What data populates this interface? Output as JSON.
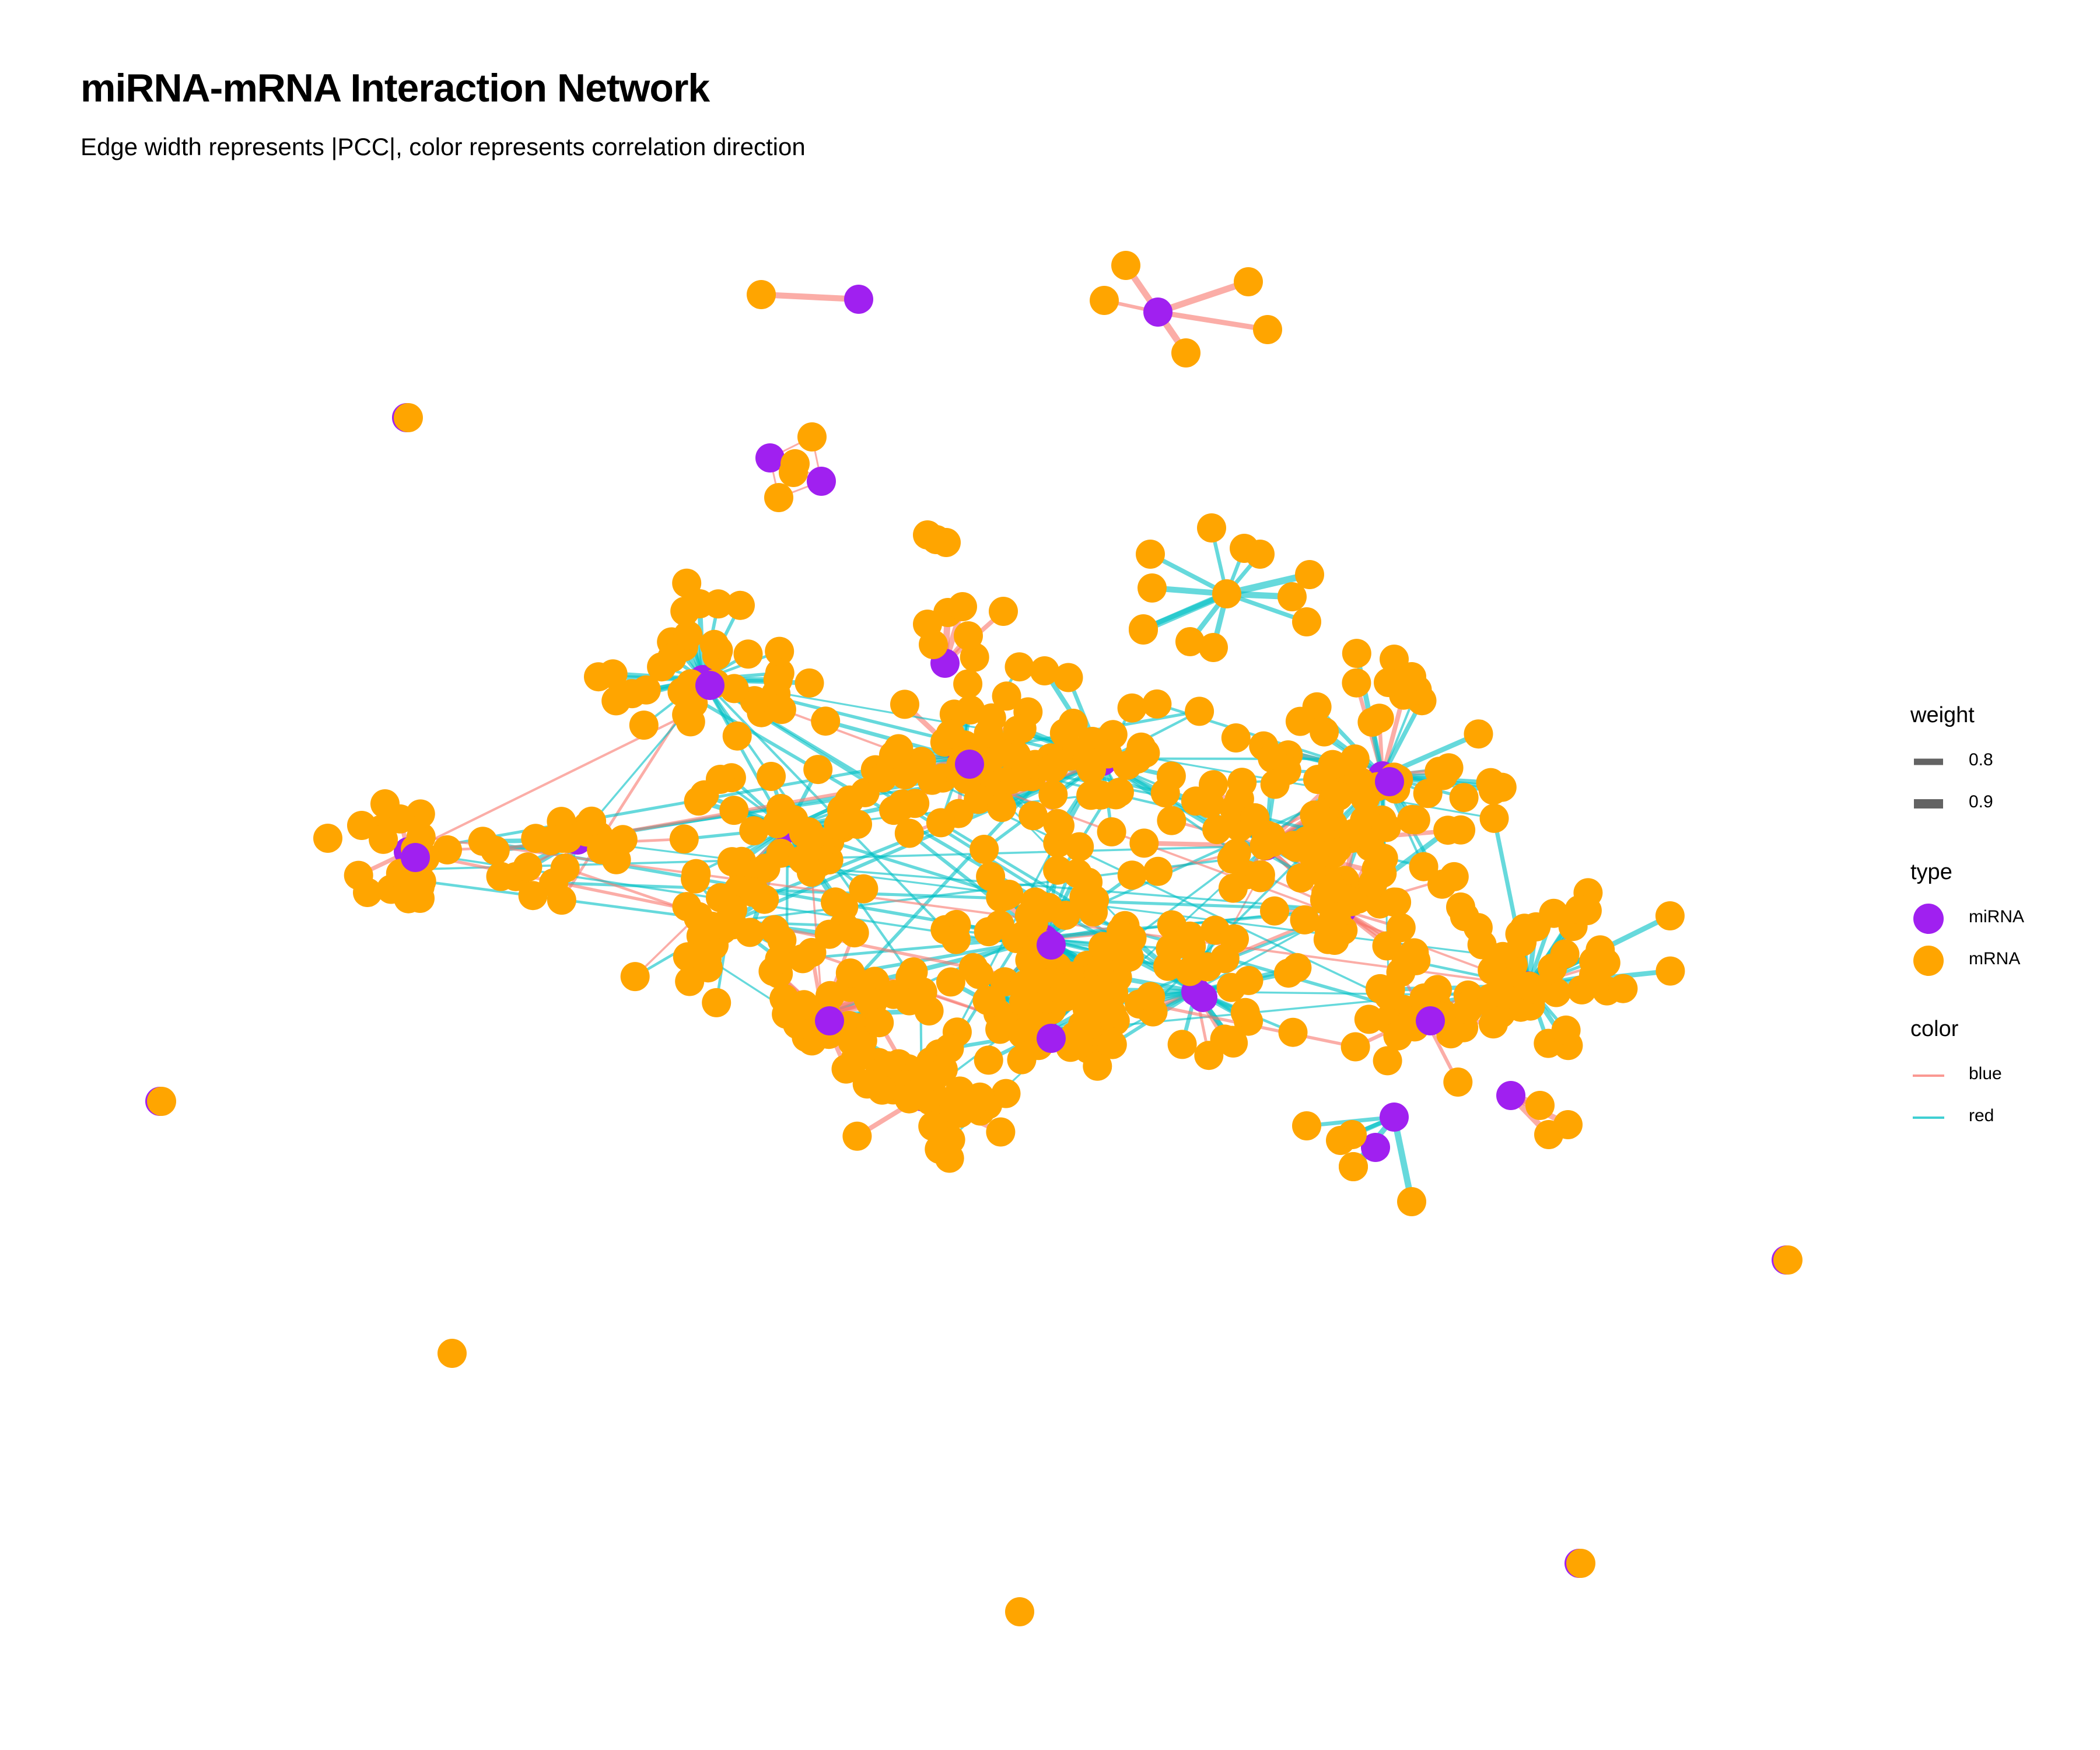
{
  "title": "miRNA-mRNA Interaction Network",
  "subtitle": "Edge width represents |PCC|, color represents correlation direction",
  "colors": {
    "miRNA": "#A020F0",
    "mRNA": "#FFA500",
    "edge_blue": "#F8766D",
    "edge_red": "#00BFC4"
  },
  "legend": {
    "weight": {
      "title": "weight",
      "items": [
        "0.8",
        "0.9"
      ]
    },
    "type": {
      "title": "type",
      "items": [
        "miRNA",
        "mRNA"
      ]
    },
    "color": {
      "title": "color",
      "items": [
        "blue",
        "red"
      ]
    }
  }
}
